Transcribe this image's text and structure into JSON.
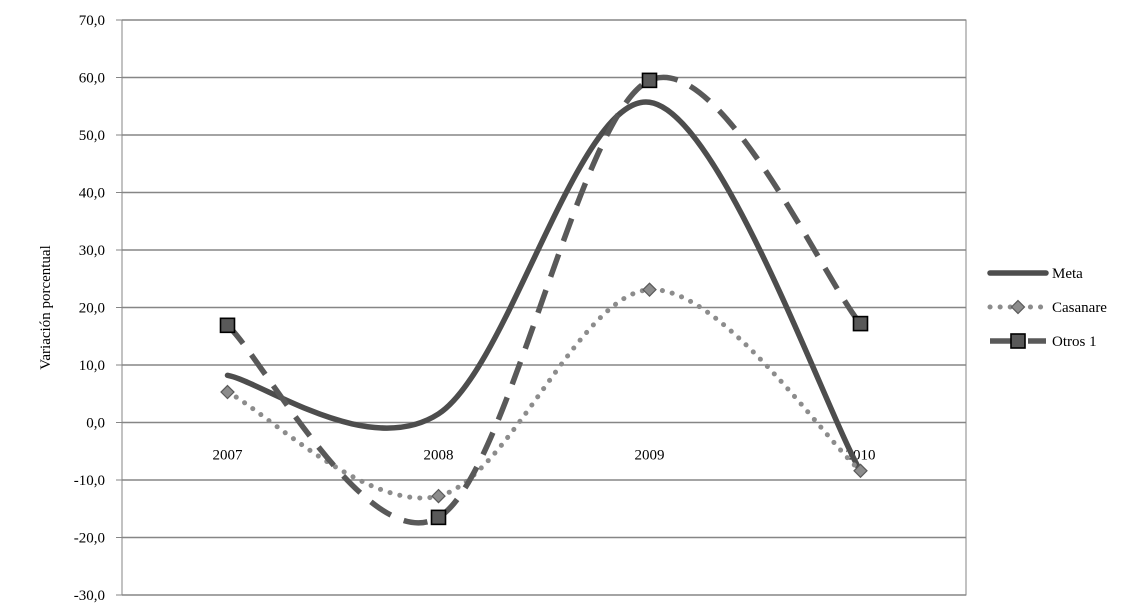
{
  "chart_data": {
    "type": "line",
    "title": "",
    "xlabel": "",
    "ylabel": "Variación porcentual",
    "categories": [
      "2007",
      "2008",
      "2009",
      "2010"
    ],
    "ylim": [
      -30,
      70
    ],
    "yticks": [
      -30,
      -20,
      -10,
      0,
      10,
      20,
      30,
      40,
      50,
      60,
      70
    ],
    "ytick_labels": [
      "-30,0",
      "-20,0",
      "-10,0",
      "0,0",
      "10,0",
      "20,0",
      "30,0",
      "40,0",
      "50,0",
      "60,0",
      "70,0"
    ],
    "grid": true,
    "smooth": true,
    "legend_position": "right",
    "series": [
      {
        "name": "Meta",
        "values": [
          8.2,
          1.5,
          55.7,
          -8.5
        ],
        "color": "#4d4d4d",
        "line_style": "solid",
        "marker": "none"
      },
      {
        "name": "Casanare",
        "values": [
          5.3,
          -12.8,
          23.1,
          -8.4
        ],
        "color": "#8c8c8c",
        "line_style": "dotted",
        "marker": "diamond"
      },
      {
        "name": "Otros 1",
        "values": [
          16.9,
          -16.5,
          59.5,
          17.2
        ],
        "color": "#595959",
        "line_style": "dashed",
        "marker": "square"
      }
    ]
  }
}
